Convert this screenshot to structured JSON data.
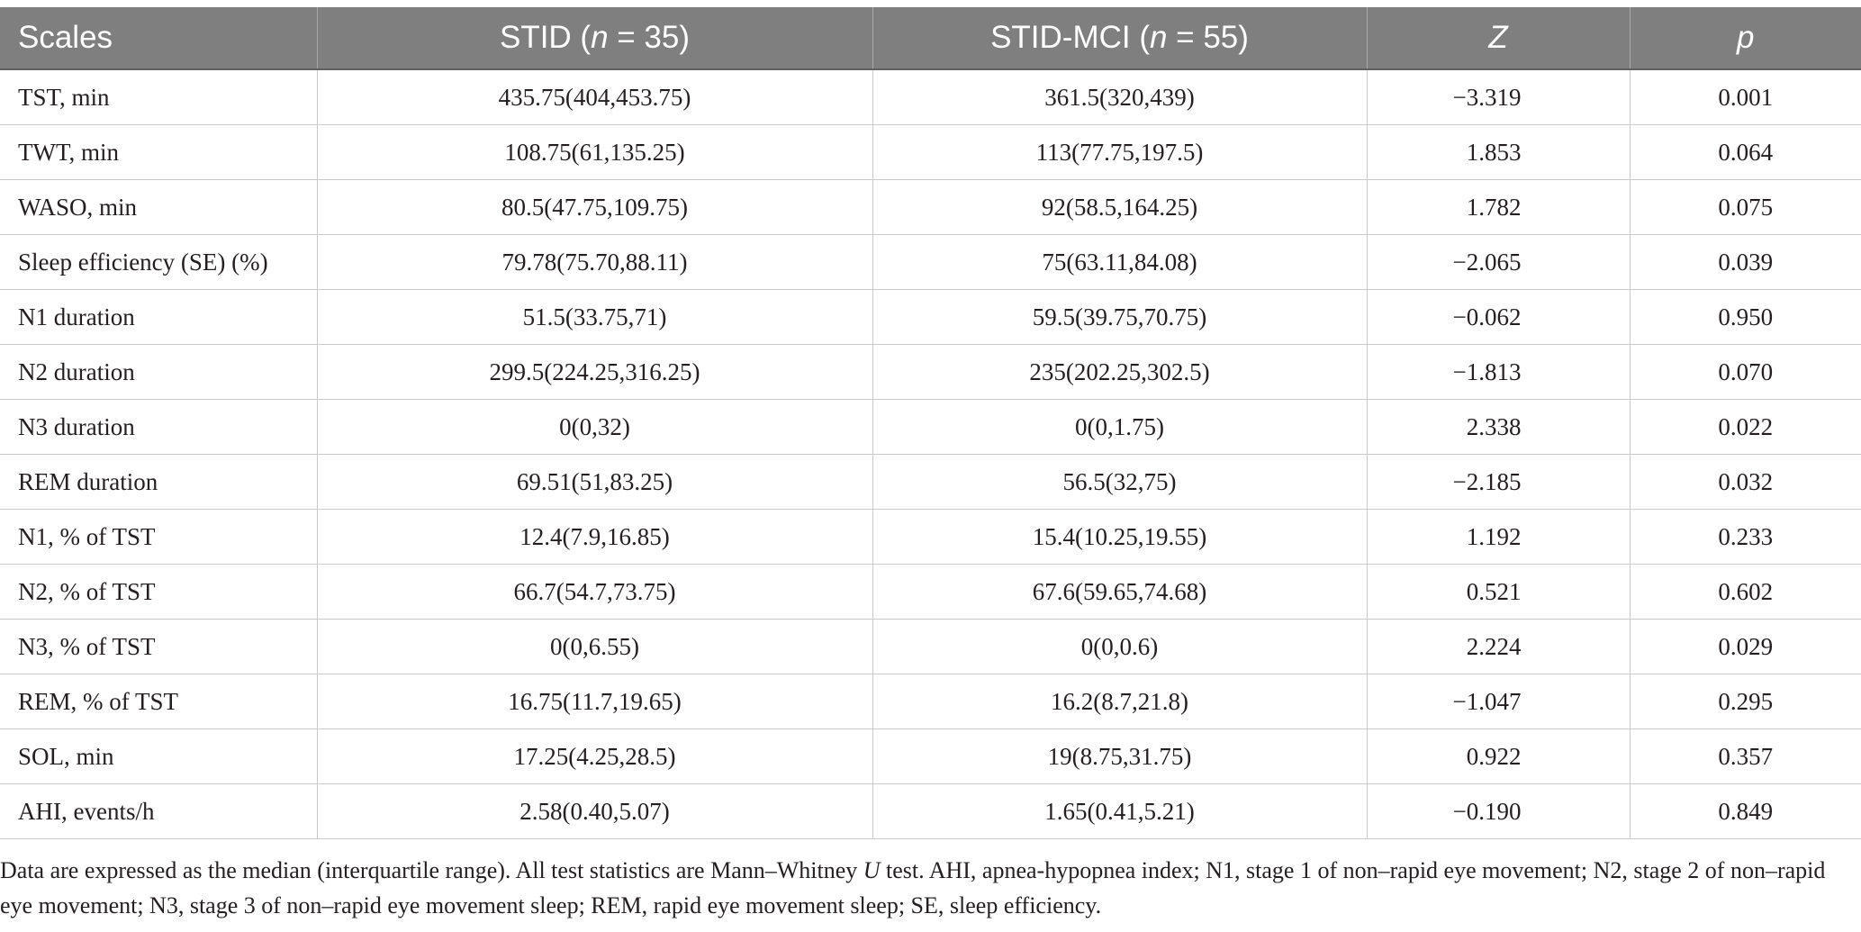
{
  "table": {
    "headers": {
      "scales": "Scales",
      "stid_name": "STID (",
      "stid_n": "n",
      "stid_count": " = 35)",
      "mci_name": "STID-MCI (",
      "mci_n": "n",
      "mci_count": " = 55)",
      "z": "Z",
      "p": "p"
    },
    "rows": [
      {
        "scale": "TST, min",
        "stid": "435.75(404,453.75)",
        "mci": "361.5(320,439)",
        "z": "−3.319",
        "p": "0.001"
      },
      {
        "scale": "TWT, min",
        "stid": "108.75(61,135.25)",
        "mci": "113(77.75,197.5)",
        "z": "1.853",
        "p": "0.064"
      },
      {
        "scale": "WASO, min",
        "stid": "80.5(47.75,109.75)",
        "mci": "92(58.5,164.25)",
        "z": "1.782",
        "p": "0.075"
      },
      {
        "scale": "Sleep efficiency (SE) (%)",
        "stid": "79.78(75.70,88.11)",
        "mci": "75(63.11,84.08)",
        "z": "−2.065",
        "p": "0.039"
      },
      {
        "scale": "N1 duration",
        "stid": "51.5(33.75,71)",
        "mci": "59.5(39.75,70.75)",
        "z": "−0.062",
        "p": "0.950"
      },
      {
        "scale": "N2 duration",
        "stid": "299.5(224.25,316.25)",
        "mci": "235(202.25,302.5)",
        "z": "−1.813",
        "p": "0.070"
      },
      {
        "scale": "N3 duration",
        "stid": "0(0,32)",
        "mci": "0(0,1.75)",
        "z": "2.338",
        "p": "0.022"
      },
      {
        "scale": "REM duration",
        "stid": "69.51(51,83.25)",
        "mci": "56.5(32,75)",
        "z": "−2.185",
        "p": "0.032"
      },
      {
        "scale": "N1, % of TST",
        "stid": "12.4(7.9,16.85)",
        "mci": "15.4(10.25,19.55)",
        "z": "1.192",
        "p": "0.233"
      },
      {
        "scale": "N2, % of TST",
        "stid": "66.7(54.7,73.75)",
        "mci": "67.6(59.65,74.68)",
        "z": "0.521",
        "p": "0.602"
      },
      {
        "scale": "N3, % of TST",
        "stid": "0(0,6.55)",
        "mci": "0(0,0.6)",
        "z": "2.224",
        "p": "0.029"
      },
      {
        "scale": "REM, % of TST",
        "stid": "16.75(11.7,19.65)",
        "mci": "16.2(8.7,21.8)",
        "z": "−1.047",
        "p": "0.295"
      },
      {
        "scale": "SOL, min",
        "stid": "17.25(4.25,28.5)",
        "mci": "19(8.75,31.75)",
        "z": "0.922",
        "p": "0.357"
      },
      {
        "scale": "AHI, events/h",
        "stid": "2.58(0.40,5.07)",
        "mci": "1.65(0.41,5.21)",
        "z": "−0.190",
        "p": "0.849"
      }
    ]
  },
  "footnote": {
    "part1": "Data are expressed as the median (interquartile range). All test statistics are Mann–Whitney ",
    "u": "U",
    "part2": " test. AHI, apnea-hypopnea index; N1, stage 1 of non–rapid eye movement; N2, stage 2 of non–rapid eye movement; N3, stage 3 of non–rapid eye movement sleep; REM, rapid eye movement sleep; SE, sleep efficiency."
  },
  "colors": {
    "header_background": "#7f7f7f",
    "header_text": "#ffffff",
    "body_text": "#231f20",
    "grid_lines": "#c9c9c9"
  }
}
